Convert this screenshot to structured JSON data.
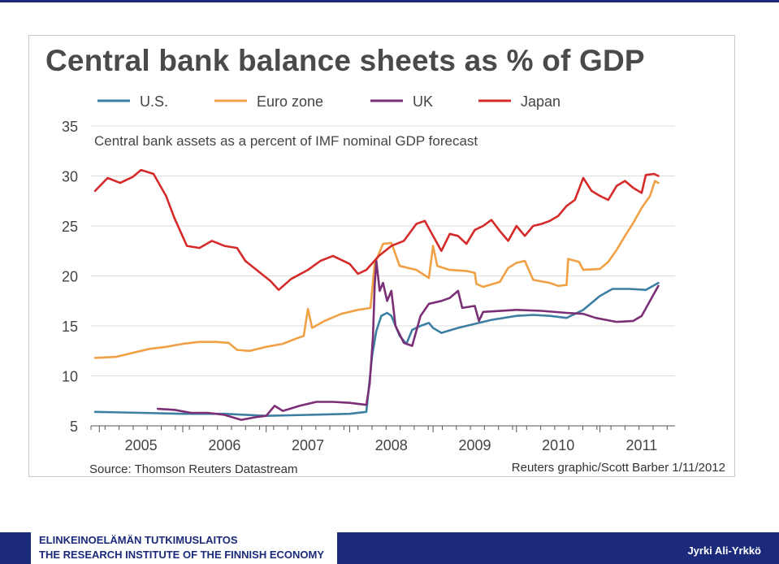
{
  "chart_data": {
    "type": "line",
    "title": "Central bank balance sheets as % of GDP",
    "subtitle": "Central bank assets as a percent of IMF nominal GDP forecast",
    "source": "Source: Thomson Reuters Datastream",
    "credit": "Reuters graphic/Scott Barber 1/11/2012",
    "y_ticks": [
      "35",
      "30",
      "25",
      "20",
      "15",
      "10",
      "5"
    ],
    "x_ticks": [
      "2005",
      "2006",
      "2007",
      "2008",
      "2009",
      "2010",
      "2011"
    ],
    "ylim": [
      5,
      35
    ],
    "xlim": [
      2004.9,
      2011.9
    ],
    "grid": true,
    "legend_position": "top",
    "series": [
      {
        "name": "U.S.",
        "color": "#3d7fa3",
        "points": [
          [
            2004.95,
            6.4
          ],
          [
            2005.5,
            6.3
          ],
          [
            2006.0,
            6.2
          ],
          [
            2006.5,
            6.2
          ],
          [
            2007.0,
            6.0
          ],
          [
            2007.5,
            6.1
          ],
          [
            2008.0,
            6.2
          ],
          [
            2008.2,
            6.4
          ],
          [
            2008.27,
            12.0
          ],
          [
            2008.32,
            14.5
          ],
          [
            2008.38,
            16.0
          ],
          [
            2008.45,
            16.3
          ],
          [
            2008.5,
            16.0
          ],
          [
            2008.6,
            14.0
          ],
          [
            2008.68,
            13.2
          ],
          [
            2008.75,
            14.6
          ],
          [
            2008.85,
            15.0
          ],
          [
            2008.95,
            15.3
          ],
          [
            2009.0,
            14.8
          ],
          [
            2009.1,
            14.3
          ],
          [
            2009.3,
            14.8
          ],
          [
            2009.5,
            15.2
          ],
          [
            2009.7,
            15.6
          ],
          [
            2010.0,
            16.0
          ],
          [
            2010.2,
            16.1
          ],
          [
            2010.4,
            16.0
          ],
          [
            2010.6,
            15.8
          ],
          [
            2010.8,
            16.6
          ],
          [
            2011.0,
            18.0
          ],
          [
            2011.15,
            18.7
          ],
          [
            2011.35,
            18.7
          ],
          [
            2011.55,
            18.6
          ],
          [
            2011.7,
            19.3
          ]
        ]
      },
      {
        "name": "Euro zone",
        "color": "#f0a045",
        "points": [
          [
            2004.95,
            11.8
          ],
          [
            2005.2,
            11.9
          ],
          [
            2005.4,
            12.3
          ],
          [
            2005.6,
            12.7
          ],
          [
            2005.8,
            12.9
          ],
          [
            2006.0,
            13.2
          ],
          [
            2006.2,
            13.4
          ],
          [
            2006.4,
            13.4
          ],
          [
            2006.55,
            13.3
          ],
          [
            2006.65,
            12.6
          ],
          [
            2006.8,
            12.5
          ],
          [
            2007.0,
            12.9
          ],
          [
            2007.2,
            13.2
          ],
          [
            2007.35,
            13.7
          ],
          [
            2007.45,
            14.0
          ],
          [
            2007.5,
            16.7
          ],
          [
            2007.55,
            14.8
          ],
          [
            2007.7,
            15.5
          ],
          [
            2007.9,
            16.2
          ],
          [
            2008.1,
            16.6
          ],
          [
            2008.25,
            16.8
          ],
          [
            2008.3,
            21.2
          ],
          [
            2008.4,
            23.2
          ],
          [
            2008.5,
            23.3
          ],
          [
            2008.6,
            21.0
          ],
          [
            2008.8,
            20.6
          ],
          [
            2008.95,
            19.8
          ],
          [
            2009.0,
            23.0
          ],
          [
            2009.05,
            21.0
          ],
          [
            2009.2,
            20.6
          ],
          [
            2009.4,
            20.5
          ],
          [
            2009.5,
            20.3
          ],
          [
            2009.52,
            19.2
          ],
          [
            2009.6,
            18.9
          ],
          [
            2009.8,
            19.4
          ],
          [
            2009.9,
            20.8
          ],
          [
            2010.0,
            21.3
          ],
          [
            2010.1,
            21.5
          ],
          [
            2010.2,
            19.6
          ],
          [
            2010.4,
            19.3
          ],
          [
            2010.5,
            19.0
          ],
          [
            2010.6,
            19.1
          ],
          [
            2010.62,
            21.7
          ],
          [
            2010.75,
            21.4
          ],
          [
            2010.8,
            20.6
          ],
          [
            2011.0,
            20.7
          ],
          [
            2011.1,
            21.4
          ],
          [
            2011.2,
            22.6
          ],
          [
            2011.3,
            24.0
          ],
          [
            2011.4,
            25.3
          ],
          [
            2011.5,
            26.8
          ],
          [
            2011.6,
            28.0
          ],
          [
            2011.66,
            29.5
          ],
          [
            2011.7,
            29.3
          ]
        ]
      },
      {
        "name": "UK",
        "color": "#7a2f76",
        "points": [
          [
            2005.7,
            6.7
          ],
          [
            2005.9,
            6.6
          ],
          [
            2006.1,
            6.3
          ],
          [
            2006.3,
            6.3
          ],
          [
            2006.5,
            6.1
          ],
          [
            2006.7,
            5.6
          ],
          [
            2006.9,
            5.9
          ],
          [
            2007.0,
            6.0
          ],
          [
            2007.1,
            7.0
          ],
          [
            2007.2,
            6.5
          ],
          [
            2007.4,
            7.0
          ],
          [
            2007.6,
            7.4
          ],
          [
            2007.8,
            7.4
          ],
          [
            2008.0,
            7.3
          ],
          [
            2008.2,
            7.1
          ],
          [
            2008.24,
            9.2
          ],
          [
            2008.28,
            14.0
          ],
          [
            2008.3,
            19.0
          ],
          [
            2008.32,
            21.5
          ],
          [
            2008.36,
            18.5
          ],
          [
            2008.4,
            19.3
          ],
          [
            2008.45,
            17.5
          ],
          [
            2008.5,
            18.5
          ],
          [
            2008.55,
            15.0
          ],
          [
            2008.65,
            13.3
          ],
          [
            2008.75,
            13.0
          ],
          [
            2008.85,
            16.0
          ],
          [
            2008.95,
            17.2
          ],
          [
            2009.1,
            17.5
          ],
          [
            2009.2,
            17.8
          ],
          [
            2009.3,
            18.5
          ],
          [
            2009.35,
            16.8
          ],
          [
            2009.5,
            17.0
          ],
          [
            2009.55,
            15.5
          ],
          [
            2009.6,
            16.4
          ],
          [
            2010.0,
            16.6
          ],
          [
            2010.3,
            16.5
          ],
          [
            2010.6,
            16.3
          ],
          [
            2010.8,
            16.2
          ],
          [
            2010.95,
            15.8
          ],
          [
            2011.2,
            15.4
          ],
          [
            2011.4,
            15.5
          ],
          [
            2011.5,
            16.0
          ],
          [
            2011.6,
            17.5
          ],
          [
            2011.7,
            19.0
          ]
        ]
      },
      {
        "name": "Japan",
        "color": "#d42a2a",
        "points": [
          [
            2004.95,
            28.5
          ],
          [
            2005.1,
            29.8
          ],
          [
            2005.25,
            29.3
          ],
          [
            2005.4,
            29.9
          ],
          [
            2005.5,
            30.6
          ],
          [
            2005.65,
            30.2
          ],
          [
            2005.8,
            28.0
          ],
          [
            2005.9,
            25.8
          ],
          [
            2006.05,
            23.0
          ],
          [
            2006.2,
            22.8
          ],
          [
            2006.35,
            23.5
          ],
          [
            2006.5,
            23.0
          ],
          [
            2006.65,
            22.8
          ],
          [
            2006.75,
            21.5
          ],
          [
            2006.9,
            20.5
          ],
          [
            2007.05,
            19.5
          ],
          [
            2007.15,
            18.6
          ],
          [
            2007.3,
            19.7
          ],
          [
            2007.5,
            20.6
          ],
          [
            2007.65,
            21.5
          ],
          [
            2007.8,
            22.0
          ],
          [
            2008.0,
            21.2
          ],
          [
            2008.1,
            20.2
          ],
          [
            2008.2,
            20.6
          ],
          [
            2008.35,
            22.0
          ],
          [
            2008.5,
            23.0
          ],
          [
            2008.65,
            23.5
          ],
          [
            2008.8,
            25.2
          ],
          [
            2008.9,
            25.5
          ],
          [
            2009.0,
            24.0
          ],
          [
            2009.1,
            22.5
          ],
          [
            2009.2,
            24.2
          ],
          [
            2009.3,
            24.0
          ],
          [
            2009.4,
            23.2
          ],
          [
            2009.5,
            24.6
          ],
          [
            2009.6,
            25.0
          ],
          [
            2009.7,
            25.6
          ],
          [
            2009.8,
            24.5
          ],
          [
            2009.9,
            23.5
          ],
          [
            2010.0,
            25.0
          ],
          [
            2010.1,
            24.0
          ],
          [
            2010.2,
            25.0
          ],
          [
            2010.3,
            25.2
          ],
          [
            2010.4,
            25.5
          ],
          [
            2010.5,
            26.0
          ],
          [
            2010.6,
            27.0
          ],
          [
            2010.7,
            27.6
          ],
          [
            2010.8,
            29.8
          ],
          [
            2010.9,
            28.5
          ],
          [
            2011.0,
            28.0
          ],
          [
            2011.1,
            27.6
          ],
          [
            2011.2,
            29.0
          ],
          [
            2011.3,
            29.5
          ],
          [
            2011.4,
            28.8
          ],
          [
            2011.5,
            28.3
          ],
          [
            2011.55,
            30.1
          ],
          [
            2011.65,
            30.2
          ],
          [
            2011.7,
            30.0
          ]
        ]
      }
    ]
  },
  "footer": {
    "org_fi": "ELINKEINOELÄMÄN TUTKIMUSLAITOS",
    "org_en": "THE RESEARCH INSTITUTE OF THE FINNISH ECONOMY",
    "author": "Jyrki Ali-Yrkkö",
    "brand_color": "#1b2a7a"
  }
}
